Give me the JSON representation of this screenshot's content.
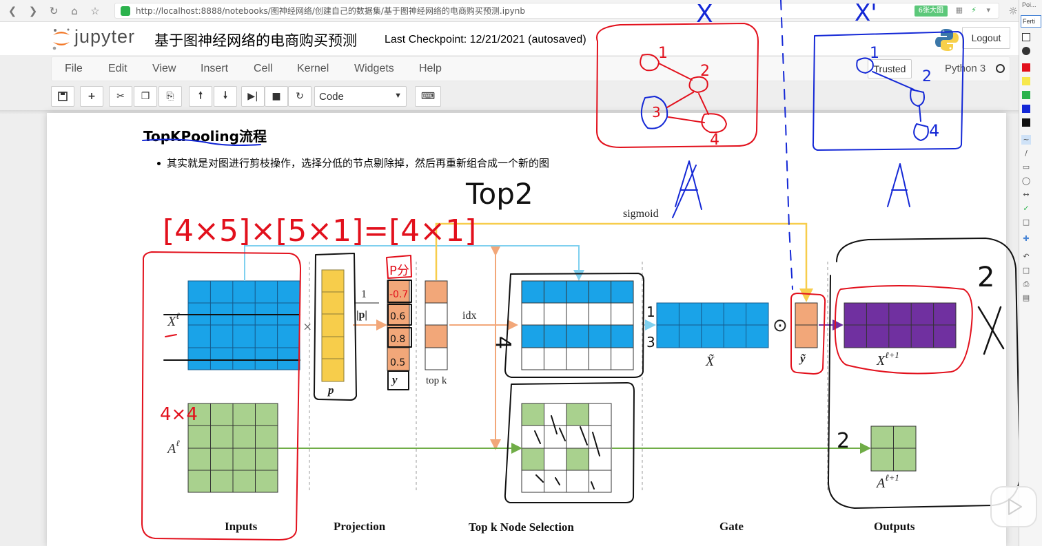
{
  "browser": {
    "url": "http://localhost:8888/notebooks/图神经网络/创建自己的数据集/基于图神经网络的电商购买预测.ipynb",
    "badge": "6张大图"
  },
  "jupyter": {
    "logo_text": "jupyter",
    "notebook_title": "基于图神经网络的电商购买预测",
    "checkpoint": "Last Checkpoint: 12/21/2021 (autosaved)",
    "logout_label": "Logout",
    "menu": [
      "File",
      "Edit",
      "View",
      "Insert",
      "Cell",
      "Kernel",
      "Widgets",
      "Help"
    ],
    "trusted_label": "Trusted",
    "kernel_name": "Python 3",
    "cell_type": "Code"
  },
  "notebook": {
    "heading": "TopKPooling流程",
    "bullet": "其实就是对图进行剪枝操作，选择分低的节点剔除掉，然后再重新组合成一个新的图"
  },
  "diagram": {
    "stage_labels": [
      "Inputs",
      "Projection",
      "Top k Node Selection",
      "Gate",
      "Outputs"
    ],
    "sigmoid": "sigmoid",
    "idx": "idx",
    "top_k": "top k",
    "p": "p",
    "frac_num": "1",
    "frac_den": "|p|",
    "y": "y",
    "x_tilde": "X̃",
    "y_tilde": "ỹ",
    "x_in": "X",
    "x_in_sup": "ℓ",
    "a_in": "A",
    "a_in_sup": "ℓ",
    "x_out": "X",
    "x_out_sup": "ℓ+1",
    "a_out": "A",
    "a_out_sup": "ℓ+1",
    "times": "×",
    "odot": "⊙",
    "handwriting": {
      "top2": "Top2",
      "matrix_eq": "[4×5]×[5×1]=[4×1]",
      "size_4x4": "4×4",
      "p_score": "P分",
      "scores": [
        "-0.7",
        "0.6",
        "0.8",
        "0.5"
      ],
      "graph_x": "X",
      "graph_a": "A",
      "graph_x_prime": "X'",
      "graph_a_prime": "A'",
      "node_labels": [
        "1",
        "2",
        "3",
        "4"
      ],
      "two_a": "2",
      "two_b": "2",
      "two_c": "2",
      "x_cross": "X",
      "four_a": "4",
      "four_b": "4",
      "one": "1",
      "three": "3"
    }
  },
  "side_panel": {
    "title": "Poi...",
    "tab": "Ferti"
  },
  "colors": {
    "blue_matrix": "#1aa3e8",
    "yellow": "#f7cd4b",
    "orange": "#f2a779",
    "purple": "#7030a0",
    "green_matrix": "#a9d18e",
    "ink_red": "#e2101c",
    "ink_blue": "#1428d6",
    "ink_black": "#111111"
  }
}
